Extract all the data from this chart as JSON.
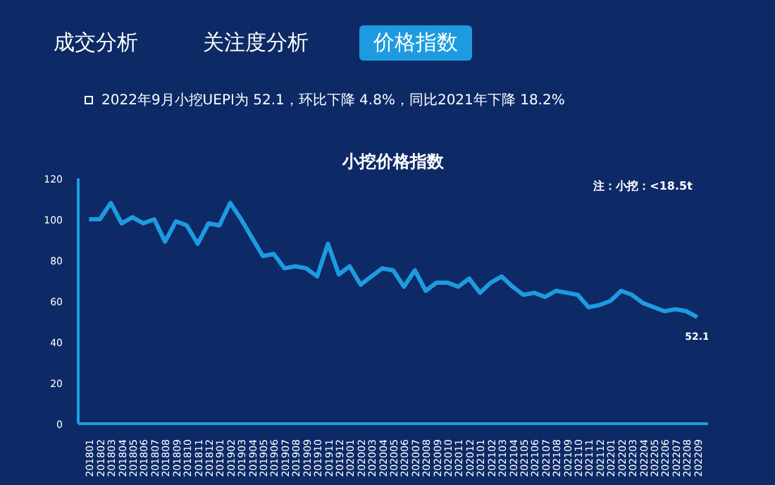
{
  "chart_data": {
    "type": "line",
    "title": "小挖价格指数",
    "annotations": [
      "成交分析",
      "关注度分析",
      "价格指数",
      "2022年9月小挖UEPI为 52.1，环比下降 4.8%，同比2021年下降 18.2%",
      "注：小挖：<18.5t"
    ],
    "categories": [
      "201801",
      "201802",
      "201803",
      "201804",
      "201805",
      "201806",
      "201807",
      "201808",
      "201809",
      "201810",
      "201811",
      "201812",
      "201901",
      "201902",
      "201903",
      "201904",
      "201905",
      "201906",
      "201907",
      "201908",
      "201909",
      "201910",
      "201911",
      "201912",
      "202001",
      "202002",
      "202003",
      "202004",
      "202005",
      "202006",
      "202007",
      "202008",
      "202009",
      "202010",
      "202011",
      "202012",
      "202101",
      "202102",
      "202103",
      "202104",
      "202105",
      "202106",
      "202107",
      "202108",
      "202109",
      "202110",
      "202111",
      "202112",
      "202201",
      "202202",
      "202203",
      "202204",
      "202205",
      "202206",
      "202207",
      "202208",
      "202209"
    ],
    "series": [
      {
        "color": "#1e9be0",
        "values": [
          100,
          100,
          108,
          98,
          101,
          98,
          100,
          89,
          99,
          97,
          88,
          98,
          97,
          108,
          100,
          91,
          82,
          83,
          76,
          77,
          76,
          72,
          88,
          73,
          77,
          68,
          72,
          76,
          75,
          67,
          75,
          65,
          69,
          69,
          67,
          71,
          64,
          69,
          72,
          67,
          63,
          64,
          62,
          65,
          64,
          63,
          57,
          58,
          60,
          65,
          63,
          59,
          57,
          55,
          56,
          55,
          52.1
        ],
        "value_labels": [
          null,
          null,
          null,
          null,
          null,
          null,
          null,
          null,
          null,
          null,
          null,
          null,
          null,
          null,
          null,
          null,
          null,
          null,
          null,
          null,
          null,
          null,
          null,
          null,
          null,
          null,
          null,
          null,
          null,
          null,
          null,
          null,
          null,
          null,
          null,
          null,
          null,
          null,
          null,
          null,
          null,
          null,
          null,
          null,
          null,
          null,
          null,
          null,
          null,
          null,
          null,
          null,
          null,
          null,
          null,
          null,
          "52.1"
        ]
      }
    ],
    "ylim": [
      0,
      120
    ],
    "yticks": [
      0,
      20,
      40,
      60,
      80,
      100,
      120
    ],
    "grid": false,
    "marker": "none",
    "line_style": "solid"
  }
}
